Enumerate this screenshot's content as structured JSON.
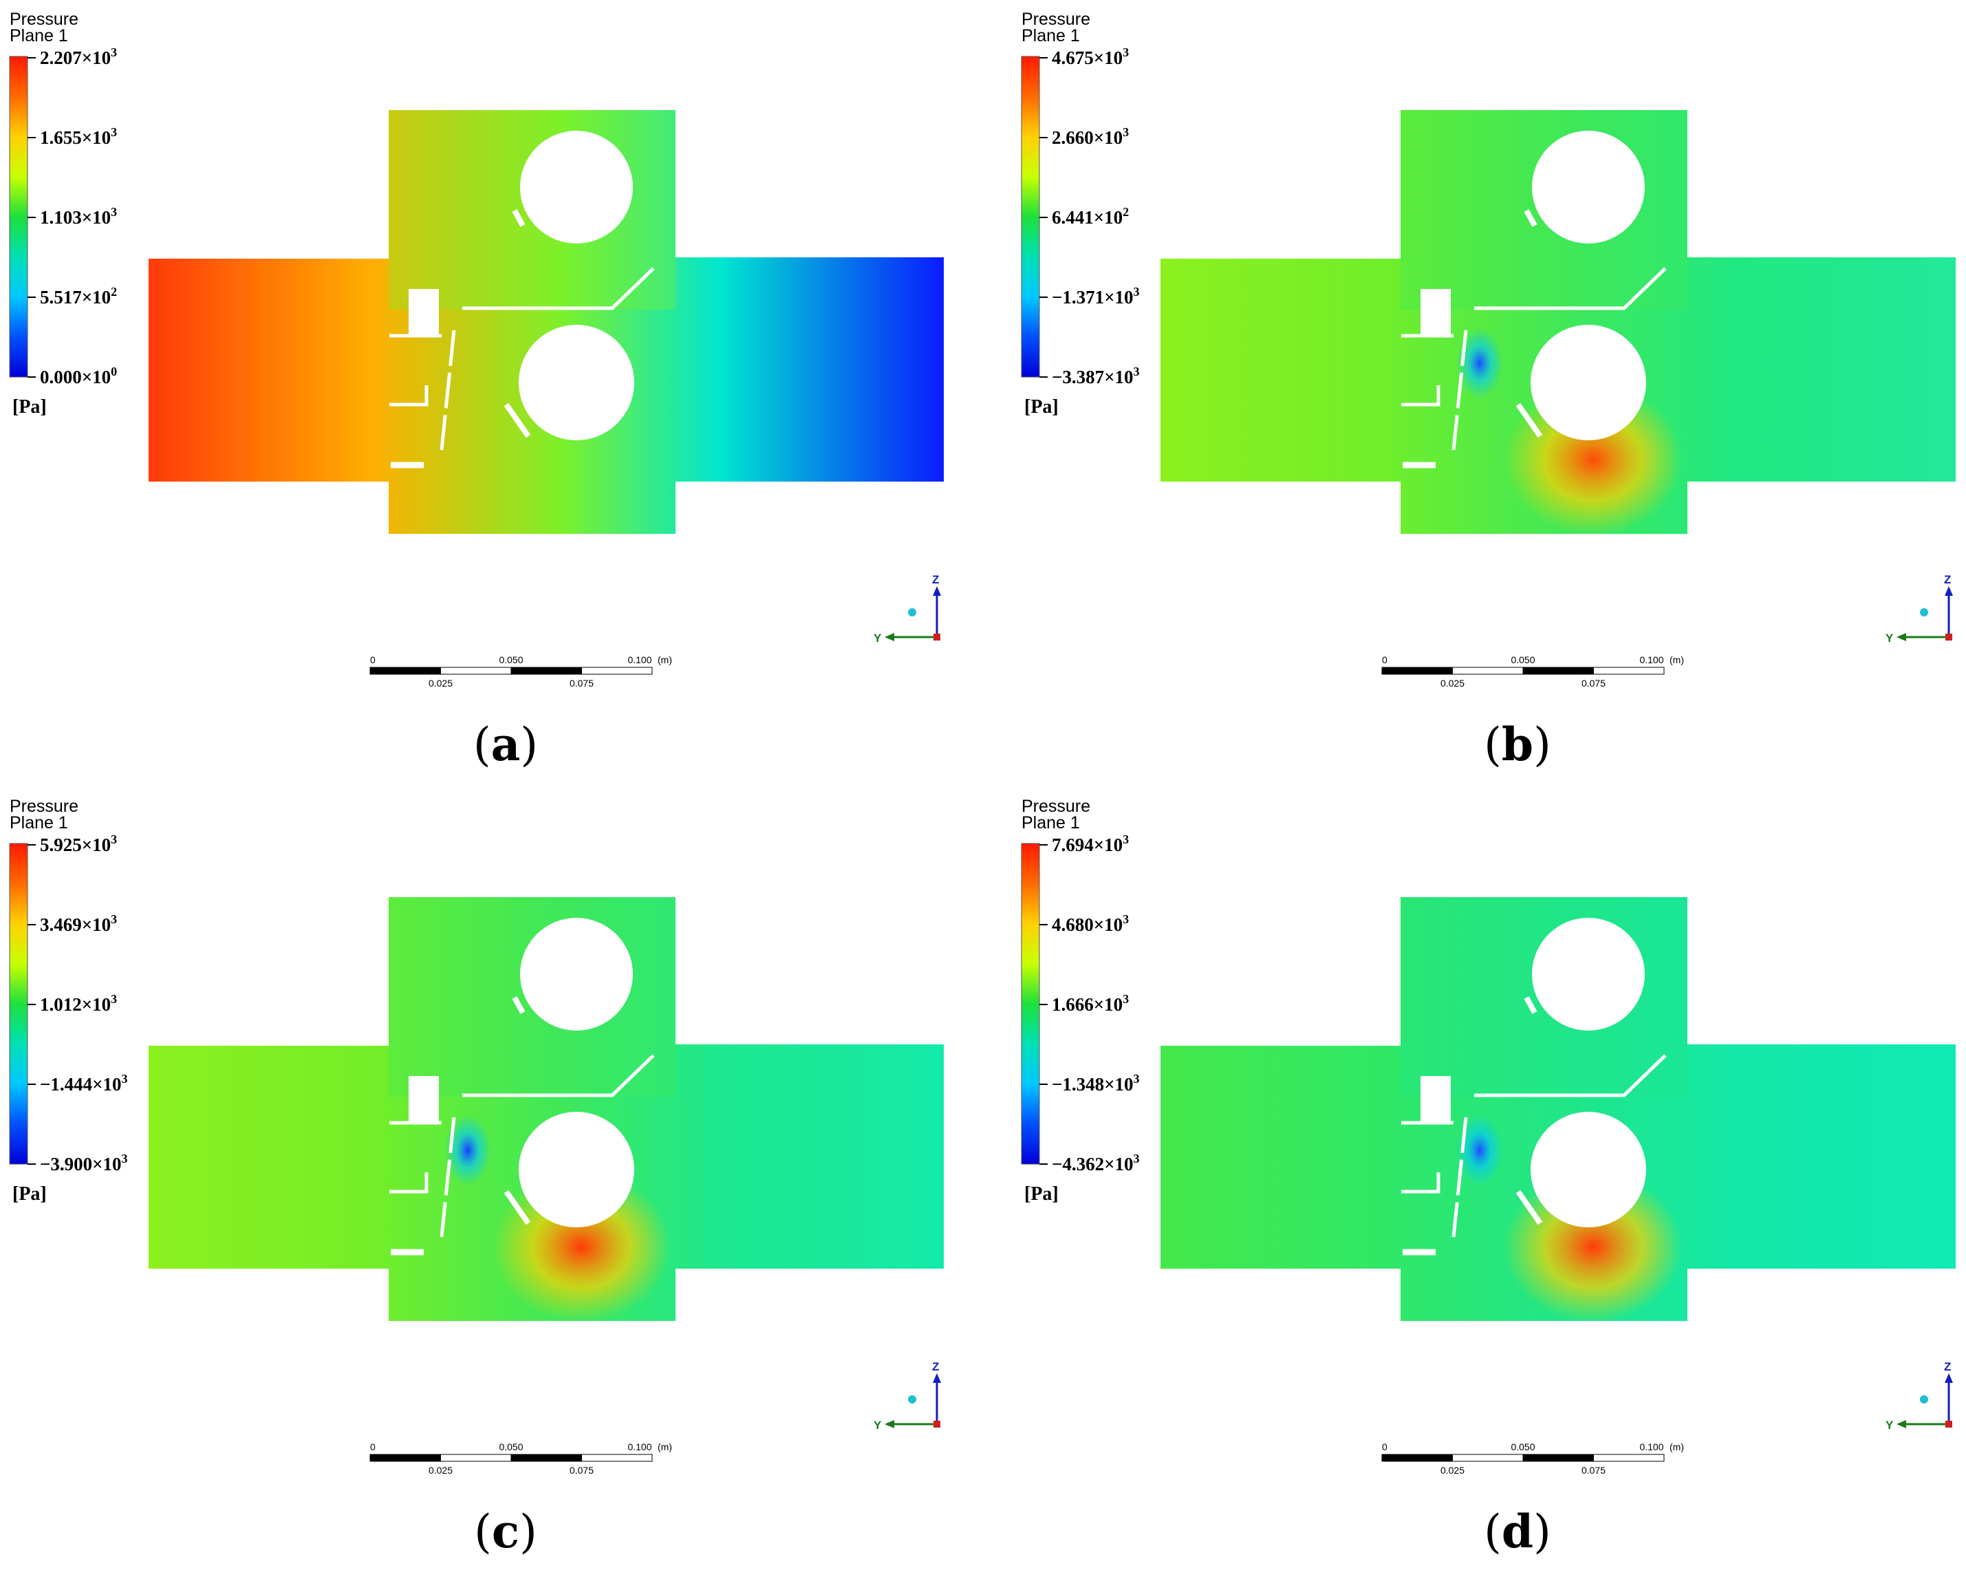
{
  "panels": [
    {
      "id": "a",
      "legend": {
        "title": "Pressure",
        "subtitle": "Plane 1",
        "ticks": [
          {
            "m": "2.207",
            "e": "3"
          },
          {
            "m": "1.655",
            "e": "3"
          },
          {
            "m": "1.103",
            "e": "3"
          },
          {
            "m": "5.517",
            "e": "2"
          },
          {
            "m": "0.000",
            "e": "0"
          }
        ],
        "unit": "[Pa]"
      },
      "field": {
        "left": "#ff3a0a",
        "left_mid": "#ffae00",
        "center": "#7cf02a",
        "right_mid": "#00e6d0",
        "right": "#0a1cff",
        "hot": null,
        "cold": null
      },
      "scale": {
        "labels_top": [
          "0",
          "0.050",
          "0.100",
          "(m)"
        ],
        "labels_bottom": [
          "0.025",
          "0.075"
        ]
      },
      "axes": {
        "z": "Z",
        "y": "Y"
      },
      "caption": {
        "open": "(",
        "letter": "a",
        "close": ")"
      }
    },
    {
      "id": "b",
      "legend": {
        "title": "Pressure",
        "subtitle": "Plane 1",
        "ticks": [
          {
            "m": "4.675",
            "e": "3"
          },
          {
            "m": "2.660",
            "e": "3"
          },
          {
            "m": "6.441",
            "e": "2"
          },
          {
            "m": "−1.371",
            "e": "3"
          },
          {
            "m": "−3.387",
            "e": "3"
          }
        ],
        "unit": "[Pa]"
      },
      "field": {
        "left": "#8cf01e",
        "left_mid": "#70ee2a",
        "center": "#3ee85a",
        "right_mid": "#22e882",
        "right": "#22e89a",
        "hot": "#ff4a08",
        "cold": "#1a4cff"
      },
      "scale": {
        "labels_top": [
          "0",
          "0.050",
          "0.100",
          "(m)"
        ],
        "labels_bottom": [
          "0.025",
          "0.075"
        ]
      },
      "axes": {
        "z": "Z",
        "y": "Y"
      },
      "caption": {
        "open": "(",
        "letter": "b",
        "close": ")"
      }
    },
    {
      "id": "c",
      "legend": {
        "title": "Pressure",
        "subtitle": "Plane 1",
        "ticks": [
          {
            "m": "5.925",
            "e": "3"
          },
          {
            "m": "3.469",
            "e": "3"
          },
          {
            "m": "1.012",
            "e": "3"
          },
          {
            "m": "−1.444",
            "e": "3"
          },
          {
            "m": "−3.900",
            "e": "3"
          }
        ],
        "unit": "[Pa]"
      },
      "field": {
        "left": "#8cf01e",
        "left_mid": "#74ee28",
        "center": "#3ee85a",
        "right_mid": "#1ee890",
        "right": "#14eaa8",
        "hot": "#ff3a0a",
        "cold": "#1a3cff"
      },
      "scale": {
        "labels_top": [
          "0",
          "0.050",
          "0.100",
          "(m)"
        ],
        "labels_bottom": [
          "0.025",
          "0.075"
        ]
      },
      "axes": {
        "z": "Z",
        "y": "Y"
      },
      "caption": {
        "open": "(",
        "letter": "c",
        "close": ")"
      }
    },
    {
      "id": "d",
      "legend": {
        "title": "Pressure",
        "subtitle": "Plane 1",
        "ticks": [
          {
            "m": "7.694",
            "e": "3"
          },
          {
            "m": "4.680",
            "e": "3"
          },
          {
            "m": "1.666",
            "e": "3"
          },
          {
            "m": "−1.348",
            "e": "3"
          },
          {
            "m": "−4.362",
            "e": "3"
          }
        ],
        "unit": "[Pa]"
      },
      "field": {
        "left": "#44e84a",
        "left_mid": "#30e866",
        "center": "#20e68a",
        "right_mid": "#14e8a6",
        "right": "#10eab4",
        "hot": "#ff3a0a",
        "cold": "#1a4cff"
      },
      "scale": {
        "labels_top": [
          "0",
          "0.050",
          "0.100",
          "(m)"
        ],
        "labels_bottom": [
          "0.025",
          "0.075"
        ]
      },
      "axes": {
        "z": "Z",
        "y": "Y"
      },
      "caption": {
        "open": "(",
        "letter": "d",
        "close": ")"
      }
    }
  ],
  "colormap": [
    "#ff1a00",
    "#ff6a00",
    "#ffd000",
    "#c8ff00",
    "#1ee03c",
    "#00e0b4",
    "#00c8ff",
    "#0050ff",
    "#0000d8"
  ]
}
